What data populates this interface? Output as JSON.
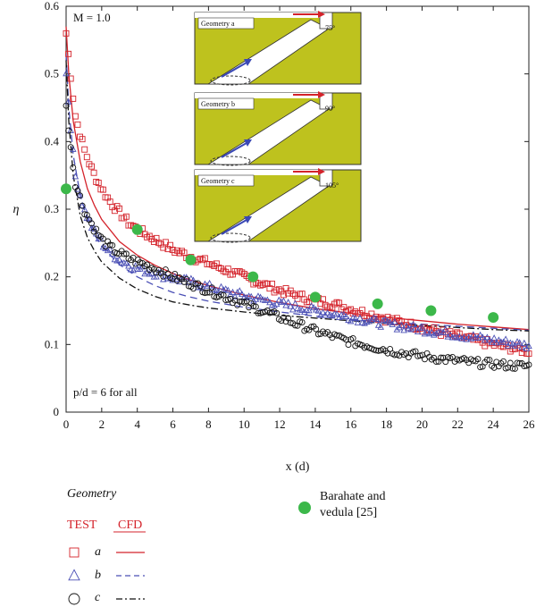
{
  "chart_data": {
    "type": "scatter",
    "xlabel": "x (d)",
    "ylabel": "η",
    "xlim": [
      0,
      26
    ],
    "ylim": [
      0,
      0.6
    ],
    "x_ticks": [
      0,
      2,
      4,
      6,
      8,
      10,
      12,
      14,
      16,
      18,
      20,
      22,
      24,
      26
    ],
    "y_ticks": [
      0,
      0.1,
      0.2,
      0.3,
      0.4,
      0.5,
      0.6
    ],
    "x_tick_labels": [
      "0",
      "2",
      "4",
      "6",
      "8",
      "10",
      "12",
      "14",
      "16",
      "18",
      "20",
      "22",
      "24",
      "26"
    ],
    "y_tick_labels": [
      "0",
      "0.1",
      "0.2",
      "0.3",
      "0.4",
      "0.5",
      "0.6"
    ],
    "annotations": {
      "top_left": "M = 1.0",
      "bottom_left": "p/d = 6 for all"
    },
    "series": [
      {
        "name": "a",
        "kind": "TEST",
        "marker": "square",
        "color": "#d4232b",
        "x": [
          0,
          0.5,
          1,
          1.5,
          2,
          2.5,
          3,
          3.5,
          4,
          5,
          6,
          7,
          8,
          9,
          10,
          11,
          12,
          13,
          14,
          15,
          16,
          17,
          18,
          19,
          20,
          21,
          22,
          23,
          24,
          25,
          26
        ],
        "y": [
          0.56,
          0.44,
          0.39,
          0.355,
          0.33,
          0.31,
          0.295,
          0.28,
          0.27,
          0.255,
          0.24,
          0.23,
          0.22,
          0.21,
          0.2,
          0.19,
          0.18,
          0.172,
          0.165,
          0.16,
          0.152,
          0.145,
          0.138,
          0.131,
          0.125,
          0.118,
          0.112,
          0.106,
          0.1,
          0.095,
          0.09
        ]
      },
      {
        "name": "b",
        "kind": "TEST",
        "marker": "triangle",
        "color": "#4a4fb5",
        "x": [
          0,
          0.5,
          1,
          1.5,
          2,
          2.5,
          3,
          3.5,
          4,
          5,
          6,
          7,
          8,
          9,
          10,
          11,
          12,
          13,
          14,
          15,
          16,
          17,
          18,
          19,
          20,
          21,
          22,
          23,
          24,
          25,
          26
        ],
        "y": [
          0.5,
          0.35,
          0.3,
          0.27,
          0.25,
          0.235,
          0.225,
          0.218,
          0.212,
          0.205,
          0.198,
          0.192,
          0.185,
          0.178,
          0.172,
          0.166,
          0.16,
          0.155,
          0.15,
          0.145,
          0.14,
          0.135,
          0.13,
          0.126,
          0.122,
          0.118,
          0.114,
          0.11,
          0.106,
          0.102,
          0.098
        ]
      },
      {
        "name": "c",
        "kind": "TEST",
        "marker": "circle",
        "color": "#111111",
        "x": [
          0,
          0.5,
          1,
          1.5,
          2,
          2.5,
          3,
          3.5,
          4,
          5,
          6,
          7,
          8,
          9,
          10,
          11,
          12,
          13,
          14,
          15,
          16,
          17,
          18,
          19,
          20,
          21,
          22,
          23,
          24,
          25,
          26
        ],
        "y": [
          0.45,
          0.34,
          0.3,
          0.275,
          0.255,
          0.243,
          0.235,
          0.228,
          0.222,
          0.212,
          0.2,
          0.19,
          0.18,
          0.17,
          0.16,
          0.15,
          0.14,
          0.13,
          0.12,
          0.112,
          0.104,
          0.098,
          0.092,
          0.087,
          0.083,
          0.079,
          0.076,
          0.073,
          0.071,
          0.069,
          0.068
        ]
      },
      {
        "name": "a",
        "kind": "CFD",
        "style": "solid",
        "color": "#d4232b",
        "x": [
          0,
          0.15,
          0.4,
          0.8,
          1.2,
          1.6,
          2,
          3,
          4,
          5,
          6,
          7,
          8,
          10,
          12,
          14,
          16,
          18,
          20,
          22,
          24,
          26
        ],
        "y": [
          0.57,
          0.5,
          0.43,
          0.37,
          0.33,
          0.305,
          0.285,
          0.252,
          0.232,
          0.217,
          0.205,
          0.195,
          0.187,
          0.173,
          0.162,
          0.153,
          0.146,
          0.14,
          0.135,
          0.13,
          0.126,
          0.122
        ]
      },
      {
        "name": "b",
        "kind": "CFD",
        "style": "dashed",
        "color": "#4a4fb5",
        "x": [
          0,
          0.15,
          0.4,
          0.8,
          1.2,
          1.6,
          2,
          3,
          4,
          5,
          6,
          7,
          8,
          10,
          12,
          14,
          16,
          18,
          20,
          22,
          24,
          26
        ],
        "y": [
          0.53,
          0.45,
          0.38,
          0.32,
          0.285,
          0.262,
          0.245,
          0.218,
          0.2,
          0.187,
          0.177,
          0.17,
          0.164,
          0.155,
          0.148,
          0.142,
          0.137,
          0.133,
          0.13,
          0.127,
          0.124,
          0.121
        ]
      },
      {
        "name": "c",
        "kind": "CFD",
        "style": "dashdot",
        "color": "#111111",
        "x": [
          0,
          0.15,
          0.4,
          0.8,
          1.2,
          1.6,
          2,
          3,
          4,
          5,
          6,
          7,
          8,
          10,
          12,
          14,
          16,
          18,
          20,
          22,
          24,
          26
        ],
        "y": [
          0.52,
          0.43,
          0.35,
          0.29,
          0.258,
          0.238,
          0.222,
          0.198,
          0.182,
          0.171,
          0.163,
          0.158,
          0.154,
          0.148,
          0.143,
          0.139,
          0.135,
          0.131,
          0.128,
          0.125,
          0.122,
          0.12
        ]
      },
      {
        "name": "Barahate and vedula [25]",
        "kind": "reference",
        "marker": "filled-circle",
        "color": "#3cb84a",
        "x": [
          0,
          4,
          7,
          10.5,
          14,
          17.5,
          20.5,
          24
        ],
        "y": [
          0.33,
          0.27,
          0.225,
          0.2,
          0.17,
          0.16,
          0.15,
          0.14
        ]
      }
    ]
  },
  "insets": [
    {
      "label": "Geometry a",
      "angle": "75°"
    },
    {
      "label": "Geometry b",
      "angle": "90°"
    },
    {
      "label": "Geometry c",
      "angle": "105°"
    }
  ],
  "legend": {
    "heading": "Geometry",
    "test_label": "TEST",
    "cfd_label": "CFD",
    "rows": [
      "a",
      "b",
      "c"
    ],
    "reference_line1": "Barahate and",
    "reference_line2": "vedula [25]"
  },
  "colors": {
    "test_a": "#d4232b",
    "test_b": "#4a4fb5",
    "test_c": "#111111",
    "reference": "#3cb84a",
    "inset_fill": "#bec21e"
  }
}
